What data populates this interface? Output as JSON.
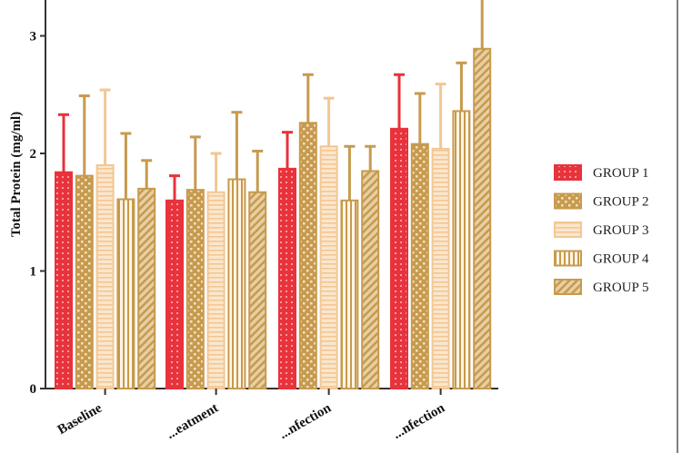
{
  "chart_data": {
    "type": "bar",
    "ylabel": "Total Protein (mg/ml)",
    "xlabel": "",
    "ylim": [
      0,
      3.3
    ],
    "yticks": [
      0,
      1,
      2,
      3
    ],
    "categories": [
      "Baseline",
      "...eatment",
      "...nfection",
      "...nfection"
    ],
    "series": [
      {
        "name": "GROUP 1",
        "color": "#e8323c",
        "pattern": "red-dots",
        "values": [
          1.84,
          1.6,
          1.87,
          2.21
        ],
        "errors": [
          0.49,
          0.21,
          0.31,
          0.46
        ]
      },
      {
        "name": "GROUP 2",
        "color": "#c79a4e",
        "pattern": "checker",
        "values": [
          1.81,
          1.69,
          2.26,
          2.08
        ],
        "errors": [
          0.68,
          0.45,
          0.41,
          0.43
        ]
      },
      {
        "name": "GROUP 3",
        "color": "#f2c793",
        "pattern": "horizontal-lines",
        "values": [
          1.9,
          1.67,
          2.06,
          2.04
        ],
        "errors": [
          0.64,
          0.33,
          0.41,
          0.55
        ]
      },
      {
        "name": "GROUP 4",
        "color": "#c79a4e",
        "pattern": "vertical-lines",
        "values": [
          1.61,
          1.78,
          1.6,
          2.36
        ],
        "errors": [
          0.56,
          0.57,
          0.46,
          0.41
        ]
      },
      {
        "name": "GROUP 5",
        "color": "#c79a4e",
        "pattern": "diagonal-lines",
        "values": [
          1.7,
          1.67,
          1.85,
          2.89
        ],
        "errors": [
          0.24,
          0.35,
          0.21,
          0.5
        ]
      }
    ],
    "legend_position": "right",
    "grid": false
  }
}
